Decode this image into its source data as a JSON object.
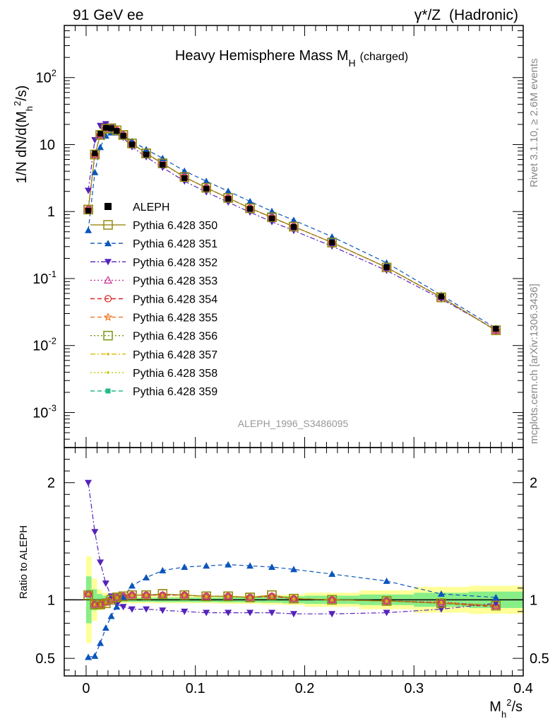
{
  "header": {
    "left": "91 GeV ee",
    "right_prefix": "γ*/Z",
    "right_suffix": "(Hadronic)"
  },
  "side_labels": {
    "rivet": "Rivet 3.1.10, ≥ 2.6M events",
    "mcplots": "mcplots.cern.ch [arXiv:1306.3436]"
  },
  "chart_data": [
    {
      "type": "line",
      "title": "Heavy Hemisphere Mass M",
      "title_sub": "H",
      "title_suffix": "(charged)",
      "ylabel": "1/N dN/d(M_h^2/s)",
      "yscale": "log",
      "ylim": [
        0.0003,
        600
      ],
      "xlim": [
        -0.02,
        0.4
      ],
      "watermark": "ALEPH_1996_S3486095",
      "y_ticks": [
        {
          "label": "10",
          "exp": "-3",
          "value": 0.001
        },
        {
          "label": "10",
          "exp": "-2",
          "value": 0.01
        },
        {
          "label": "10",
          "exp": "-1",
          "value": 0.1
        },
        {
          "label": "1",
          "exp": "",
          "value": 1
        },
        {
          "label": "10",
          "exp": "",
          "value": 10
        },
        {
          "label": "10",
          "exp": "2",
          "value": 100
        }
      ],
      "x": [
        0.002,
        0.008,
        0.013,
        0.018,
        0.023,
        0.028,
        0.034,
        0.042,
        0.055,
        0.07,
        0.09,
        0.11,
        0.13,
        0.15,
        0.17,
        0.19,
        0.225,
        0.275,
        0.325,
        0.375
      ],
      "data": {
        "name": "ALEPH",
        "values": [
          1.03,
          7.4,
          14.5,
          17.8,
          17.5,
          16.0,
          13.5,
          10.0,
          7.1,
          5.0,
          3.15,
          2.2,
          1.55,
          1.1,
          0.79,
          0.59,
          0.345,
          0.148,
          0.054,
          0.0178
        ]
      },
      "legend": [
        {
          "name": "ALEPH",
          "color": "#000000",
          "marker": "square-filled",
          "dash": "none"
        },
        {
          "name": "Pythia 6.428 350",
          "color": "#998811",
          "marker": "square-open",
          "dash": "solid"
        },
        {
          "name": "Pythia 6.428 351",
          "color": "#0b55bb",
          "marker": "triangle-up-filled",
          "dash": "dashed"
        },
        {
          "name": "Pythia 6.428 352",
          "color": "#5522bb",
          "marker": "triangle-down-filled",
          "dash": "dashdot"
        },
        {
          "name": "Pythia 6.428 353",
          "color": "#cc3399",
          "marker": "triangle-up-open",
          "dash": "dotted"
        },
        {
          "name": "Pythia 6.428 354",
          "color": "#dd2222",
          "marker": "circle-open",
          "dash": "dashed"
        },
        {
          "name": "Pythia 6.428 355",
          "color": "#ee7722",
          "marker": "star-open",
          "dash": "dashed"
        },
        {
          "name": "Pythia 6.428 356",
          "color": "#779911",
          "marker": "square-open",
          "dash": "dotted"
        },
        {
          "name": "Pythia 6.428 357",
          "color": "#ddbb00",
          "marker": "dot",
          "dash": "dashdot"
        },
        {
          "name": "Pythia 6.428 358",
          "color": "#bbcc00",
          "marker": "dot",
          "dash": "dotted"
        },
        {
          "name": "Pythia 6.428 359",
          "color": "#22bb88",
          "marker": "square-filled-small",
          "dash": "dashed"
        }
      ]
    },
    {
      "type": "line",
      "ylabel": "Ratio to ALEPH",
      "xlabel": "M_h^2/s",
      "ylim": [
        0.35,
        2.3
      ],
      "xlim": [
        -0.02,
        0.4
      ],
      "y_ticks": [
        0.5,
        1,
        2
      ],
      "x_ticks": [
        "0",
        "0.1",
        "0.2",
        "0.3",
        "0.4"
      ],
      "x_tick_values": [
        0,
        0.1,
        0.2,
        0.3,
        0.4
      ],
      "x": [
        0.002,
        0.008,
        0.013,
        0.018,
        0.023,
        0.028,
        0.034,
        0.042,
        0.055,
        0.07,
        0.09,
        0.11,
        0.13,
        0.15,
        0.17,
        0.19,
        0.225,
        0.275,
        0.325,
        0.375
      ],
      "uncertainty_edges": [
        0,
        0.005,
        0.01,
        0.015,
        0.02,
        0.025,
        0.03,
        0.038,
        0.046,
        0.063,
        0.08,
        0.1,
        0.12,
        0.14,
        0.16,
        0.18,
        0.2,
        0.25,
        0.3,
        0.35,
        0.4
      ],
      "uncertainty_yellow": [
        0.37,
        0.18,
        0.09,
        0.06,
        0.04,
        0.035,
        0.03,
        0.03,
        0.03,
        0.03,
        0.03,
        0.03,
        0.035,
        0.035,
        0.04,
        0.045,
        0.06,
        0.08,
        0.11,
        0.12
      ],
      "uncertainty_green": [
        0.2,
        0.09,
        0.05,
        0.035,
        0.025,
        0.02,
        0.018,
        0.018,
        0.018,
        0.02,
        0.02,
        0.02,
        0.022,
        0.022,
        0.025,
        0.03,
        0.035,
        0.045,
        0.06,
        0.07
      ],
      "series": [
        {
          "name": "Pythia 6.428 350",
          "values": [
            1.04,
            0.96,
            0.96,
            0.97,
            1.0,
            1.02,
            1.03,
            1.04,
            1.04,
            1.05,
            1.04,
            1.03,
            1.03,
            1.02,
            1.04,
            1.01,
            1.0,
            0.99,
            0.97,
            0.95
          ]
        },
        {
          "name": "Pythia 6.428 351",
          "values": [
            0.51,
            0.52,
            0.63,
            0.76,
            0.86,
            0.94,
            1.02,
            1.12,
            1.19,
            1.25,
            1.28,
            1.29,
            1.3,
            1.29,
            1.28,
            1.26,
            1.22,
            1.16,
            1.05,
            1.02
          ]
        },
        {
          "name": "Pythia 6.428 352",
          "values": [
            2.0,
            1.58,
            1.32,
            1.14,
            1.03,
            0.96,
            0.94,
            0.92,
            0.92,
            0.91,
            0.9,
            0.89,
            0.89,
            0.89,
            0.89,
            0.88,
            0.88,
            0.89,
            0.92,
            0.97
          ]
        },
        {
          "name": "Pythia 6.428 353",
          "values": [
            1.05,
            0.96,
            0.96,
            0.98,
            1.01,
            1.02,
            1.03,
            1.04,
            1.04,
            1.04,
            1.04,
            1.03,
            1.03,
            1.02,
            1.03,
            1.01,
            1.0,
            0.99,
            0.98,
            0.95
          ]
        },
        {
          "name": "Pythia 6.428 354",
          "values": [
            1.05,
            0.96,
            0.96,
            0.98,
            1.0,
            1.02,
            1.03,
            1.04,
            1.04,
            1.04,
            1.04,
            1.03,
            1.03,
            1.02,
            1.03,
            1.01,
            1.0,
            0.99,
            0.97,
            0.94
          ]
        },
        {
          "name": "Pythia 6.428 355",
          "values": [
            1.05,
            0.96,
            0.96,
            0.98,
            1.01,
            1.02,
            1.03,
            1.04,
            1.04,
            1.04,
            1.04,
            1.03,
            1.03,
            1.02,
            1.03,
            1.01,
            1.0,
            0.99,
            0.98,
            0.95
          ]
        },
        {
          "name": "Pythia 6.428 356",
          "values": [
            1.04,
            0.96,
            0.96,
            0.97,
            1.0,
            1.02,
            1.03,
            1.04,
            1.04,
            1.05,
            1.04,
            1.03,
            1.03,
            1.02,
            1.04,
            1.01,
            1.0,
            0.99,
            0.97,
            0.95
          ]
        },
        {
          "name": "Pythia 6.428 357",
          "values": [
            1.05,
            0.96,
            0.96,
            0.98,
            1.01,
            1.02,
            1.03,
            1.04,
            1.04,
            1.04,
            1.04,
            1.03,
            1.03,
            1.02,
            1.03,
            1.01,
            1.0,
            0.99,
            0.98,
            0.95
          ]
        },
        {
          "name": "Pythia 6.428 358",
          "values": [
            1.05,
            0.96,
            0.96,
            0.98,
            1.01,
            1.02,
            1.03,
            1.04,
            1.04,
            1.04,
            1.04,
            1.03,
            1.03,
            1.02,
            1.03,
            1.01,
            1.0,
            0.99,
            0.98,
            0.95
          ]
        },
        {
          "name": "Pythia 6.428 359",
          "values": [
            1.05,
            0.96,
            0.96,
            0.98,
            1.01,
            1.02,
            1.03,
            1.04,
            1.04,
            1.04,
            1.04,
            1.03,
            1.03,
            1.02,
            1.03,
            1.01,
            1.0,
            0.99,
            0.98,
            0.95
          ]
        }
      ]
    }
  ]
}
